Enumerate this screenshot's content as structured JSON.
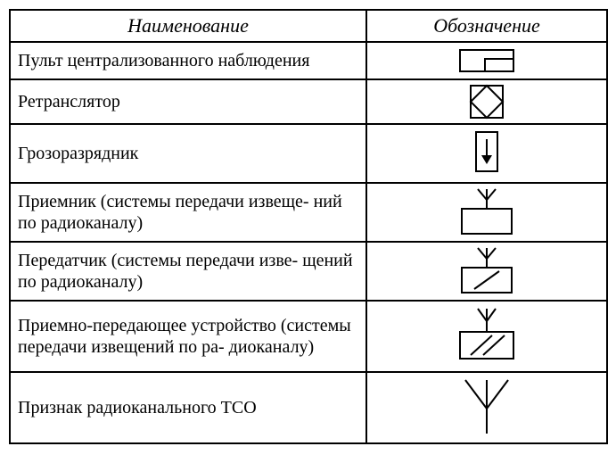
{
  "headers": {
    "name": "Наименование",
    "symbol": "Обозначение"
  },
  "rows": [
    {
      "name": "Пульт централизованного наблюдения",
      "symbol": "pult"
    },
    {
      "name": "Ретранслятор",
      "symbol": "retranslator"
    },
    {
      "name": "Грозоразрядник",
      "symbol": "grozo"
    },
    {
      "name": "Приемник (системы передачи извеще-\nний по радиоканалу)",
      "symbol": "receiver"
    },
    {
      "name": "Передатчик (системы передачи изве-\nщений по радиоканалу)",
      "symbol": "transmitter"
    },
    {
      "name": "Приемно-передающее устройство (системы передачи извещений по ра-\nдиоканалу)",
      "symbol": "transceiver"
    },
    {
      "name": "Признак радиоканального ТСО",
      "symbol": "radio-sign"
    }
  ],
  "style": {
    "stroke": "#000",
    "stroke_width": 2,
    "row_heights": {
      "pult": 36,
      "retranslator": 44,
      "grozo": 60,
      "receiver": 60,
      "transmitter": 60,
      "transceiver": 74,
      "radio-sign": 74
    }
  }
}
